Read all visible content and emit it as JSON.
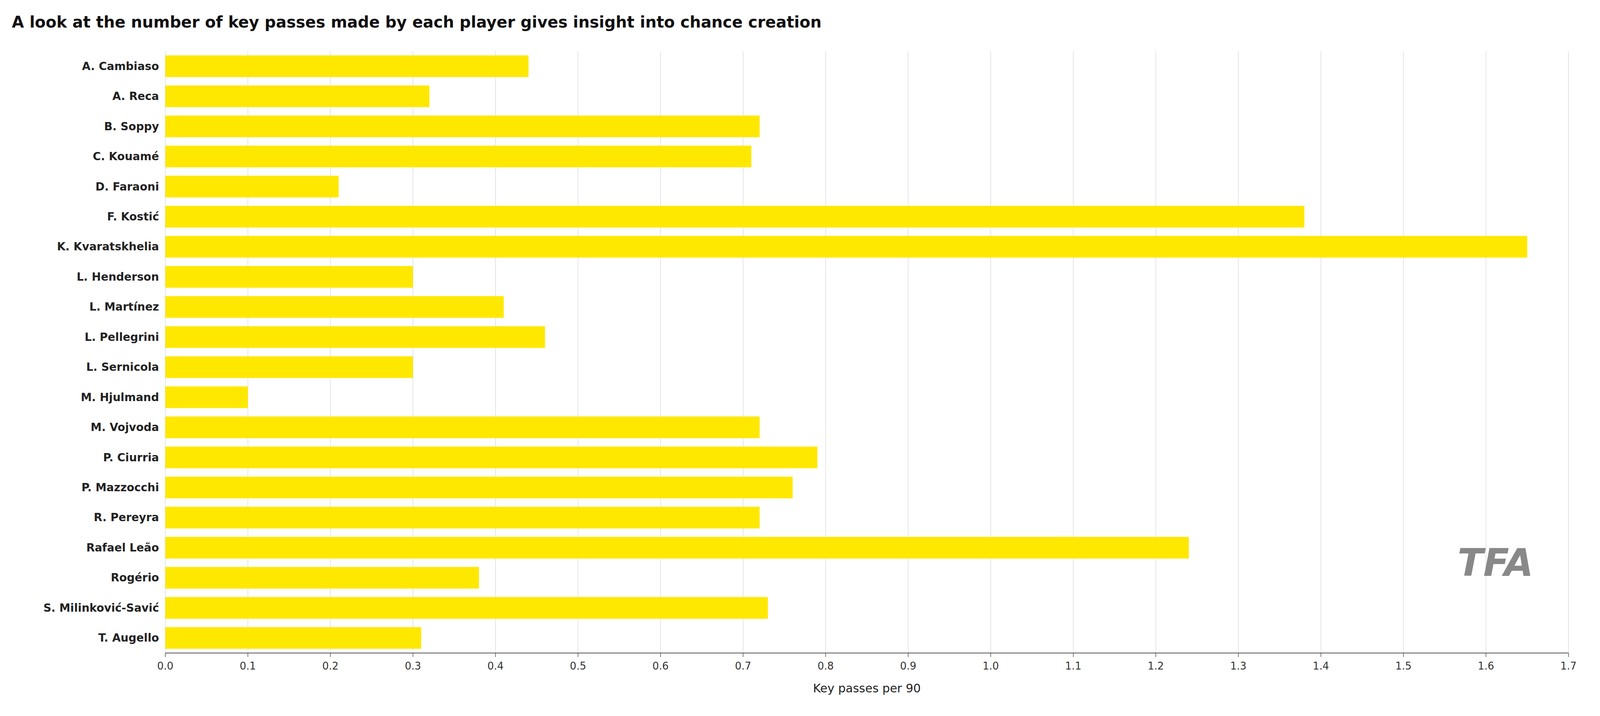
{
  "chart_data": {
    "type": "bar",
    "orientation": "horizontal",
    "title": "A look at the number of key passes made by each player gives insight into chance creation",
    "xlabel": "Key passes per 90",
    "categories": [
      "A. Cambiaso",
      "A. Reca",
      "B. Soppy",
      "C. Kouamé",
      "D. Faraoni",
      "F. Kostić",
      "K. Kvaratskhelia",
      "L. Henderson",
      "L. Martínez",
      "L. Pellegrini",
      "L. Sernicola",
      "M. Hjulmand",
      "M. Vojvoda",
      "P. Ciurria",
      "P. Mazzocchi",
      "R. Pereyra",
      "Rafael Leão",
      "Rogério",
      "S. Milinković-Savić",
      "T. Augello"
    ],
    "values": [
      0.44,
      0.32,
      0.72,
      0.71,
      0.21,
      1.38,
      1.65,
      0.3,
      0.41,
      0.46,
      0.3,
      0.1,
      0.72,
      0.79,
      0.76,
      0.72,
      1.24,
      0.38,
      0.73,
      0.31
    ],
    "color": "#FFE800",
    "xlim": [
      0,
      1.7
    ],
    "xticks": [
      {
        "value": 0,
        "label": "0.0"
      },
      0.1,
      0.2,
      0.3,
      0.4,
      0.5,
      0.6,
      0.7,
      0.8,
      0.9,
      {
        "value": 1,
        "label": "1.0"
      },
      1.1,
      1.2,
      1.3,
      1.4,
      1.5,
      1.6,
      1.7
    ],
    "grid": true,
    "annotations": [
      "TFA"
    ]
  }
}
